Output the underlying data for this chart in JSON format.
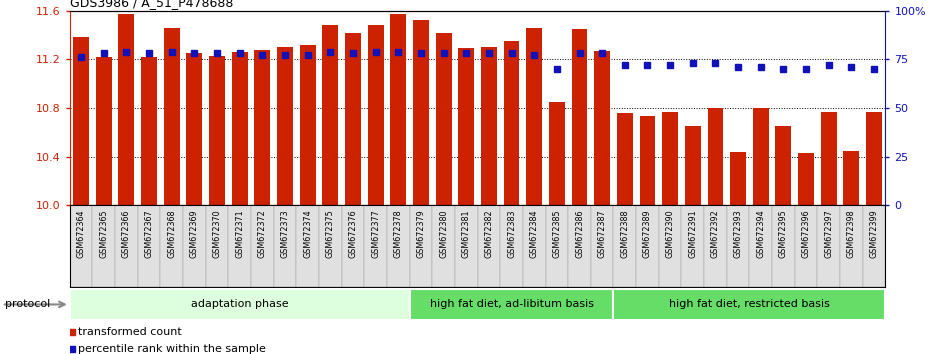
{
  "title": "GDS3986 / A_51_P478688",
  "samples": [
    "GSM672364",
    "GSM672365",
    "GSM672366",
    "GSM672367",
    "GSM672368",
    "GSM672369",
    "GSM672370",
    "GSM672371",
    "GSM672372",
    "GSM672373",
    "GSM672374",
    "GSM672375",
    "GSM672376",
    "GSM672377",
    "GSM672378",
    "GSM672379",
    "GSM672380",
    "GSM672381",
    "GSM672382",
    "GSM672383",
    "GSM672384",
    "GSM672385",
    "GSM672386",
    "GSM672387",
    "GSM672388",
    "GSM672389",
    "GSM672390",
    "GSM672391",
    "GSM672392",
    "GSM672393",
    "GSM672394",
    "GSM672395",
    "GSM672396",
    "GSM672397",
    "GSM672398",
    "GSM672399"
  ],
  "bar_values": [
    11.38,
    11.22,
    11.57,
    11.22,
    11.46,
    11.25,
    11.23,
    11.26,
    11.28,
    11.3,
    11.32,
    11.48,
    11.42,
    11.48,
    11.57,
    11.52,
    11.42,
    11.29,
    11.3,
    11.35,
    11.46,
    10.85,
    11.45,
    11.27,
    10.76,
    10.73,
    10.77,
    10.65,
    10.8,
    10.44,
    10.8,
    10.65,
    10.43,
    10.77,
    10.45,
    10.77
  ],
  "percentile_values": [
    76,
    78,
    79,
    78,
    79,
    78,
    78,
    78,
    77,
    77,
    77,
    79,
    78,
    79,
    79,
    78,
    78,
    78,
    78,
    78,
    77,
    70,
    78,
    78,
    72,
    72,
    72,
    73,
    73,
    71,
    71,
    70,
    70,
    72,
    71,
    70
  ],
  "ylim_left": [
    10.0,
    11.6
  ],
  "ylim_right": [
    0,
    100
  ],
  "bar_color": "#CC2200",
  "dot_color": "#1111BB",
  "bg_color": "#FFFFFF",
  "left_yticks": [
    10.0,
    10.4,
    10.8,
    11.2,
    11.6
  ],
  "right_yticks": [
    0,
    25,
    50,
    75,
    100
  ],
  "right_yticklabels": [
    "0",
    "25",
    "50",
    "75",
    "100%"
  ],
  "groups": [
    {
      "label": "adaptation phase",
      "start": 0,
      "end": 15,
      "color": "#DDFFDD"
    },
    {
      "label": "high fat diet, ad-libitum basis",
      "start": 15,
      "end": 24,
      "color": "#66DD66"
    },
    {
      "label": "high fat diet, restricted basis",
      "start": 24,
      "end": 36,
      "color": "#66DD66"
    }
  ],
  "legend_items": [
    {
      "label": "transformed count",
      "color": "#CC2200"
    },
    {
      "label": "percentile rank within the sample",
      "color": "#1111BB"
    }
  ],
  "protocol_label": "protocol",
  "bar_width": 0.7
}
